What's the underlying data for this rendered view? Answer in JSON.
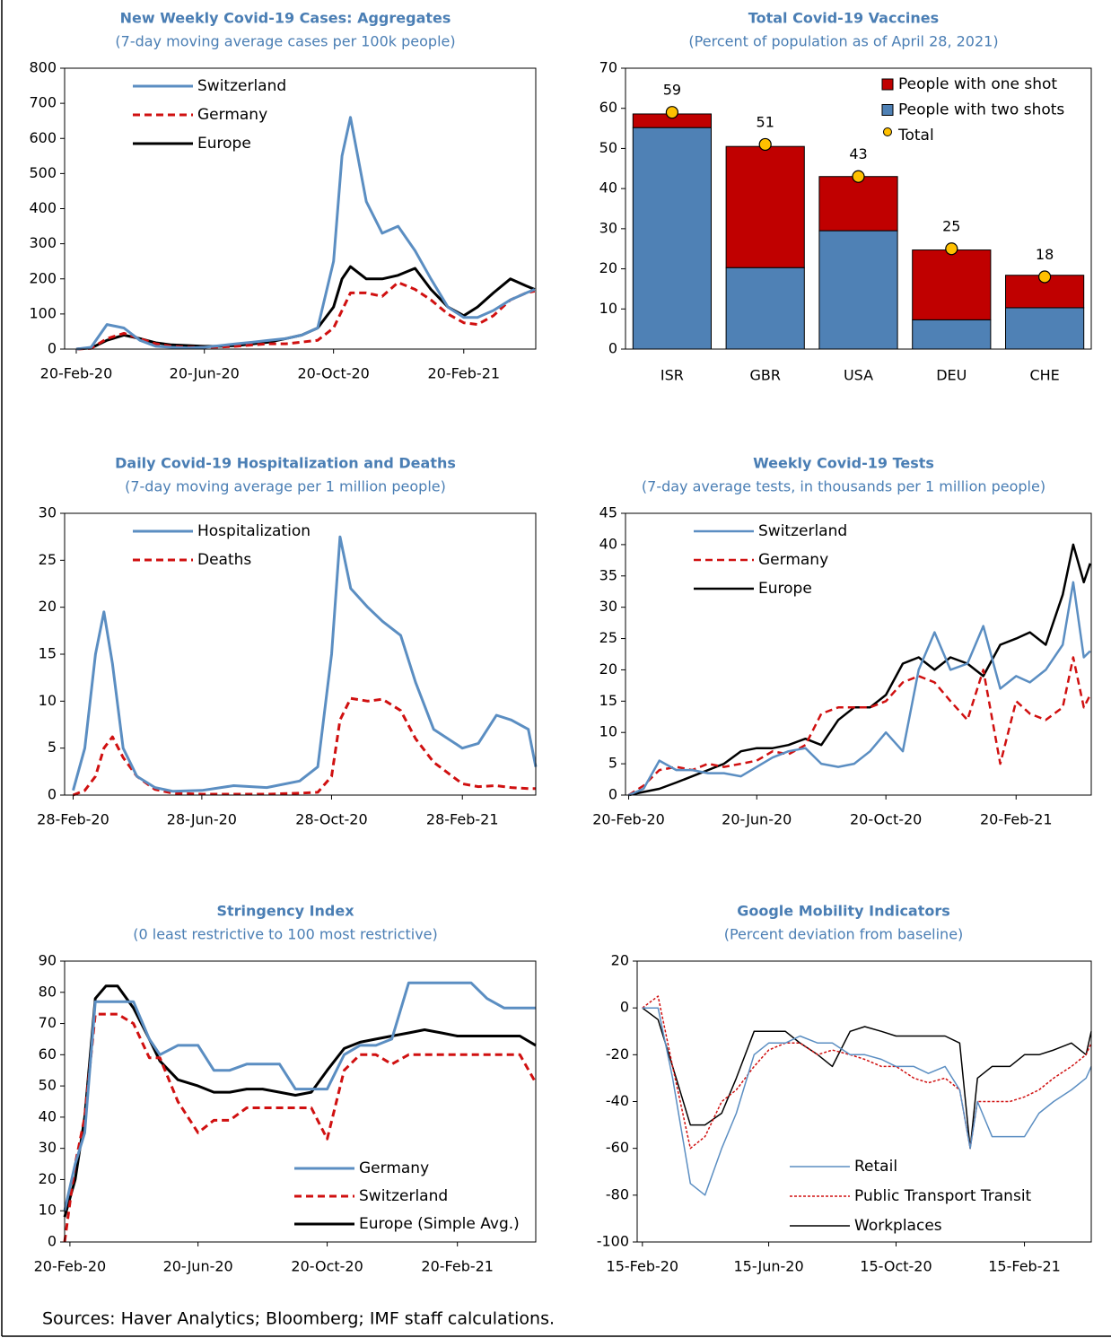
{
  "chart_data": [
    {
      "type": "line",
      "title": "New Weekly Covid-19 Cases: Aggregates",
      "subtitle": "(7-day moving average cases per 100k people)",
      "x": [
        "2020-02-20",
        "2020-03-05",
        "2020-03-20",
        "2020-04-05",
        "2020-04-20",
        "2020-05-05",
        "2020-05-20",
        "2020-06-05",
        "2020-06-20",
        "2020-07-05",
        "2020-07-20",
        "2020-08-05",
        "2020-08-20",
        "2020-09-05",
        "2020-09-20",
        "2020-10-05",
        "2020-10-20",
        "2020-10-28",
        "2020-11-05",
        "2020-11-20",
        "2020-12-05",
        "2020-12-20",
        "2021-01-05",
        "2021-01-20",
        "2021-02-05",
        "2021-02-20",
        "2021-03-05",
        "2021-03-20",
        "2021-04-05",
        "2021-04-20",
        "2021-04-28"
      ],
      "series": [
        {
          "name": "Switzerland",
          "color": "#5b8ec2",
          "dash": false,
          "values": [
            0,
            5,
            70,
            60,
            25,
            8,
            5,
            3,
            5,
            10,
            15,
            20,
            25,
            30,
            40,
            60,
            250,
            550,
            660,
            420,
            330,
            350,
            280,
            200,
            120,
            90,
            90,
            110,
            140,
            160,
            170
          ]
        },
        {
          "name": "Germany",
          "color": "#d01010",
          "dash": true,
          "values": [
            0,
            2,
            30,
            45,
            30,
            15,
            8,
            5,
            5,
            6,
            8,
            12,
            15,
            15,
            20,
            25,
            60,
            110,
            160,
            160,
            150,
            190,
            170,
            140,
            100,
            75,
            70,
            95,
            140,
            160,
            165
          ]
        },
        {
          "name": "Europe",
          "color": "#000000",
          "dash": false,
          "values": [
            0,
            3,
            25,
            40,
            30,
            18,
            12,
            10,
            8,
            8,
            10,
            15,
            20,
            30,
            40,
            60,
            120,
            200,
            235,
            200,
            200,
            210,
            230,
            170,
            120,
            95,
            120,
            160,
            200,
            180,
            170
          ]
        }
      ],
      "xlim": [
        "2020-02-09",
        "2021-04-29"
      ],
      "xticks": [
        {
          "value": "2020-02-20",
          "label": "20-Feb-20"
        },
        {
          "value": "2020-06-20",
          "label": "20-Jun-20"
        },
        {
          "value": "2020-10-20",
          "label": "20-Oct-20"
        },
        {
          "value": "2021-02-20",
          "label": "20-Feb-21"
        }
      ],
      "ylim": [
        0,
        800
      ],
      "yticks": [
        0,
        100,
        200,
        300,
        400,
        500,
        600,
        700,
        800
      ],
      "legend": "upper left",
      "line_width": 3
    },
    {
      "type": "bar",
      "title": "Total Covid-19 Vaccines",
      "subtitle": "(Percent of population as of April 28, 2021)",
      "categories": [
        "ISR",
        "GBR",
        "USA",
        "DEU",
        "CHE"
      ],
      "series": [
        {
          "name": "People with one shot",
          "color": "#c00000",
          "values": [
            3.4,
            30.2,
            13.5,
            17.4,
            8.1
          ]
        },
        {
          "name": "People with two shots",
          "color": "#4f81b5",
          "values": [
            55.2,
            20.3,
            29.5,
            7.3,
            10.3
          ]
        },
        {
          "name": "Total",
          "color": "#ffc000",
          "style": "dot",
          "values": [
            59,
            51,
            43,
            25,
            18
          ]
        }
      ],
      "ylim": [
        0,
        70
      ],
      "yticks": [
        0,
        10,
        20,
        30,
        40,
        50,
        60,
        70
      ],
      "legend": "upper right"
    },
    {
      "type": "line",
      "title": "Daily Covid-19 Hospitalization and Deaths",
      "subtitle": "(7-day moving average per 1 million people)",
      "x": [
        "2020-02-28",
        "2020-03-10",
        "2020-03-20",
        "2020-03-28",
        "2020-04-05",
        "2020-04-15",
        "2020-04-28",
        "2020-05-15",
        "2020-06-01",
        "2020-06-28",
        "2020-07-28",
        "2020-08-28",
        "2020-09-28",
        "2020-10-15",
        "2020-10-28",
        "2020-11-05",
        "2020-11-15",
        "2020-12-01",
        "2020-12-15",
        "2021-01-01",
        "2021-01-15",
        "2021-02-01",
        "2021-02-28",
        "2021-03-15",
        "2021-04-01",
        "2021-04-15",
        "2021-05-01",
        "2021-05-08"
      ],
      "series": [
        {
          "name": "Hospitalization",
          "color": "#5b8ec2",
          "dash": false,
          "values": [
            0.5,
            5,
            15,
            19.5,
            14,
            5,
            2,
            0.8,
            0.4,
            0.5,
            1,
            0.8,
            1.5,
            3,
            15,
            27.5,
            22,
            20,
            18.5,
            17,
            12,
            7,
            5,
            5.5,
            8.5,
            8,
            7,
            3
          ]
        },
        {
          "name": "Deaths",
          "color": "#d01010",
          "dash": true,
          "values": [
            0,
            0.5,
            2,
            5,
            6.2,
            4,
            2,
            0.6,
            0.2,
            0.1,
            0.1,
            0.1,
            0.2,
            0.3,
            2,
            8,
            10.3,
            10,
            10.2,
            9,
            6,
            3.5,
            1.2,
            0.9,
            1,
            0.8,
            0.7,
            0.7
          ]
        }
      ],
      "xlim": [
        "2020-02-20",
        "2021-05-08"
      ],
      "xticks": [
        {
          "value": "2020-02-28",
          "label": "28-Feb-20"
        },
        {
          "value": "2020-06-28",
          "label": "28-Jun-20"
        },
        {
          "value": "2020-10-28",
          "label": "28-Oct-20"
        },
        {
          "value": "2021-02-28",
          "label": "28-Feb-21"
        }
      ],
      "ylim": [
        0,
        30
      ],
      "yticks": [
        0,
        5,
        10,
        15,
        20,
        25,
        30
      ],
      "legend": "upper left",
      "line_width": 3
    },
    {
      "type": "line",
      "title": "Weekly Covid-19 Tests",
      "subtitle": "(7-day average tests, in thousands per 1 million people)",
      "x": [
        "2020-02-20",
        "2020-03-05",
        "2020-03-20",
        "2020-04-05",
        "2020-04-20",
        "2020-05-05",
        "2020-05-20",
        "2020-06-05",
        "2020-06-20",
        "2020-07-05",
        "2020-07-20",
        "2020-08-05",
        "2020-08-20",
        "2020-09-05",
        "2020-09-20",
        "2020-10-05",
        "2020-10-20",
        "2020-11-05",
        "2020-11-20",
        "2020-12-05",
        "2020-12-20",
        "2021-01-05",
        "2021-01-20",
        "2021-02-05",
        "2021-02-20",
        "2021-03-05",
        "2021-03-20",
        "2021-04-05",
        "2021-04-15",
        "2021-04-25",
        "2021-05-01"
      ],
      "series": [
        {
          "name": "Switzerland",
          "color": "#5b8ec2",
          "dash": false,
          "values": [
            0,
            1,
            5.5,
            4,
            4,
            3.5,
            3.5,
            3,
            4.5,
            6,
            7,
            7.5,
            5,
            4.5,
            5,
            7,
            10,
            7,
            20,
            26,
            20,
            21,
            27,
            17,
            19,
            18,
            20,
            24,
            34,
            22,
            23
          ]
        },
        {
          "name": "Germany",
          "color": "#d01010",
          "dash": true,
          "values": [
            0,
            1.5,
            4,
            4.5,
            4,
            5,
            4.5,
            5,
            5.5,
            7,
            6.5,
            8,
            13,
            14,
            14,
            14,
            15,
            18,
            19,
            18,
            15,
            12,
            20,
            5,
            15,
            13,
            12,
            14,
            22,
            14,
            16
          ]
        },
        {
          "name": "Europe",
          "color": "#000000",
          "dash": false,
          "values": [
            0,
            0.5,
            1,
            2,
            3,
            4,
            5,
            7,
            7.5,
            7.5,
            8,
            9,
            8,
            12,
            14,
            14,
            16,
            21,
            22,
            20,
            22,
            21,
            19,
            24,
            25,
            26,
            24,
            32,
            40,
            34,
            37
          ]
        }
      ],
      "xlim": [
        "2020-02-17",
        "2021-05-02"
      ],
      "xticks": [
        {
          "value": "2020-02-20",
          "label": "20-Feb-20"
        },
        {
          "value": "2020-06-20",
          "label": "20-Jun-20"
        },
        {
          "value": "2020-10-20",
          "label": "20-Oct-20"
        },
        {
          "value": "2021-02-20",
          "label": "20-Feb-21"
        }
      ],
      "ylim": [
        0,
        45
      ],
      "yticks": [
        0,
        5,
        10,
        15,
        20,
        25,
        30,
        35,
        40,
        45
      ],
      "legend": "upper left",
      "line_width": 2.5
    },
    {
      "type": "line",
      "title": "Stringency Index",
      "subtitle": "(0 least restrictive to 100 most restrictive)",
      "x": [
        "2020-02-15",
        "2020-02-25",
        "2020-03-05",
        "2020-03-15",
        "2020-03-25",
        "2020-04-05",
        "2020-04-20",
        "2020-05-05",
        "2020-05-15",
        "2020-06-01",
        "2020-06-20",
        "2020-07-05",
        "2020-07-20",
        "2020-08-05",
        "2020-08-20",
        "2020-09-05",
        "2020-09-20",
        "2020-10-05",
        "2020-10-20",
        "2020-11-05",
        "2020-11-20",
        "2020-12-05",
        "2020-12-20",
        "2021-01-05",
        "2021-01-20",
        "2021-02-05",
        "2021-02-20",
        "2021-03-05",
        "2021-03-20",
        "2021-04-05",
        "2021-04-20",
        "2021-05-05"
      ],
      "series": [
        {
          "name": "Germany",
          "color": "#5b8ec2",
          "dash": false,
          "values": [
            10,
            25,
            35,
            77,
            77,
            77,
            77,
            65,
            60,
            63,
            63,
            55,
            55,
            57,
            57,
            57,
            49,
            49,
            49,
            60,
            63,
            63,
            65,
            83,
            83,
            83,
            83,
            83,
            78,
            75,
            75,
            75
          ]
        },
        {
          "name": "Switzerland",
          "color": "#d01010",
          "dash": true,
          "values": [
            0,
            25,
            40,
            73,
            73,
            73,
            70,
            59,
            59,
            45,
            35,
            39,
            39,
            43,
            43,
            43,
            43,
            43,
            33,
            55,
            60,
            60,
            57,
            60,
            60,
            60,
            60,
            60,
            60,
            60,
            60,
            51
          ]
        },
        {
          "name": "Europe (Simple Avg.)",
          "color": "#000000",
          "dash": false,
          "values": [
            8,
            20,
            40,
            78,
            82,
            82,
            75,
            65,
            58,
            52,
            50,
            48,
            48,
            49,
            49,
            48,
            47,
            48,
            55,
            62,
            64,
            65,
            66,
            67,
            68,
            67,
            66,
            66,
            66,
            66,
            66,
            63
          ]
        }
      ],
      "xlim": [
        "2020-02-15",
        "2021-05-05"
      ],
      "xticks": [
        {
          "value": "2020-02-20",
          "label": "20-Feb-20"
        },
        {
          "value": "2020-06-20",
          "label": "20-Jun-20"
        },
        {
          "value": "2020-10-20",
          "label": "20-Oct-20"
        },
        {
          "value": "2021-02-20",
          "label": "20-Feb-21"
        }
      ],
      "ylim": [
        0,
        90
      ],
      "yticks": [
        0,
        10,
        20,
        30,
        40,
        50,
        60,
        70,
        80,
        90
      ],
      "legend": "lower right",
      "line_width": 3
    },
    {
      "type": "line",
      "title": "Google Mobility Indicators",
      "subtitle": "(Percent deviation from baseline)",
      "x": [
        "2020-02-15",
        "2020-03-01",
        "2020-03-15",
        "2020-04-01",
        "2020-04-15",
        "2020-05-01",
        "2020-05-15",
        "2020-06-01",
        "2020-06-15",
        "2020-07-01",
        "2020-07-15",
        "2020-08-01",
        "2020-08-15",
        "2020-09-01",
        "2020-09-15",
        "2020-10-01",
        "2020-10-15",
        "2020-11-01",
        "2020-11-15",
        "2020-12-01",
        "2020-12-15",
        "2020-12-25",
        "2021-01-01",
        "2021-01-15",
        "2021-02-01",
        "2021-02-15",
        "2021-03-01",
        "2021-03-15",
        "2021-04-01",
        "2021-04-15",
        "2021-04-20"
      ],
      "series": [
        {
          "name": "Retail",
          "color": "#5b8ec2",
          "dash": false,
          "values": [
            0,
            0,
            -30,
            -75,
            -80,
            -60,
            -45,
            -20,
            -15,
            -15,
            -12,
            -15,
            -15,
            -20,
            -20,
            -22,
            -25,
            -25,
            -28,
            -25,
            -35,
            -60,
            -40,
            -55,
            -55,
            -55,
            -45,
            -40,
            -35,
            -30,
            -25
          ]
        },
        {
          "name": "Public Transport Transit",
          "color": "#d01010",
          "dash": true,
          "values": [
            0,
            5,
            -25,
            -60,
            -55,
            -40,
            -35,
            -25,
            -18,
            -15,
            -15,
            -20,
            -18,
            -20,
            -22,
            -25,
            -25,
            -30,
            -32,
            -30,
            -35,
            -60,
            -40,
            -40,
            -40,
            -38,
            -35,
            -30,
            -25,
            -20,
            -15
          ]
        },
        {
          "name": "Workplaces",
          "color": "#000000",
          "dash": false,
          "values": [
            0,
            -5,
            -25,
            -50,
            -50,
            -45,
            -30,
            -10,
            -10,
            -10,
            -15,
            -20,
            -25,
            -10,
            -8,
            -10,
            -12,
            -12,
            -12,
            -12,
            -15,
            -60,
            -30,
            -25,
            -25,
            -20,
            -20,
            -18,
            -15,
            -20,
            -10
          ]
        }
      ],
      "xlim": [
        "2020-02-10",
        "2021-04-20"
      ],
      "xticks": [
        {
          "value": "2020-02-15",
          "label": "15-Feb-20"
        },
        {
          "value": "2020-06-15",
          "label": "15-Jun-20"
        },
        {
          "value": "2020-10-15",
          "label": "15-Oct-20"
        },
        {
          "value": "2021-02-15",
          "label": "15-Feb-21"
        }
      ],
      "ylim": [
        -100,
        20
      ],
      "yticks": [
        -100,
        -80,
        -60,
        -40,
        -20,
        0,
        20
      ],
      "legend": "lower center",
      "line_width": 1.5
    }
  ],
  "source": "Sources: Haver Analytics;  Bloomberg; IMF staff calculations."
}
